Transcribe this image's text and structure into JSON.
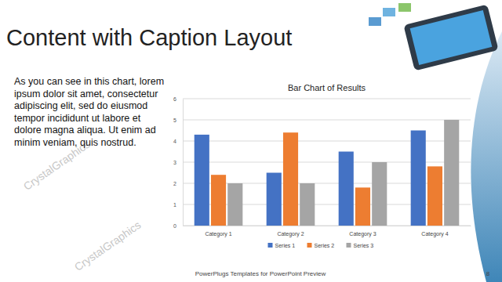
{
  "slide": {
    "title": "Content with Caption Layout",
    "caption": [
      "As you can see in this chart, lorem",
      "ipsum dolor sit amet, consectetur",
      "adipiscing elit, sed do eiusmod",
      "tempor incididunt ut labore et",
      "dolore magna aliqua. Ut enim ad",
      "minim veniam, quis nostrud."
    ],
    "watermark": "CrystalGraphics",
    "footer": "PowerPlugs Templates for PowerPoint Preview",
    "page_number": "8"
  },
  "chart_data": {
    "type": "bar",
    "title": "Bar Chart of Results",
    "categories": [
      "Category 1",
      "Category 2",
      "Category 3",
      "Category 4"
    ],
    "series": [
      {
        "name": "Series 1",
        "color": "#4472c4",
        "values": [
          4.3,
          2.5,
          3.5,
          4.5
        ]
      },
      {
        "name": "Series 2",
        "color": "#ed7d31",
        "values": [
          2.4,
          4.4,
          1.8,
          2.8
        ]
      },
      {
        "name": "Series 3",
        "color": "#a5a5a5",
        "values": [
          2,
          2,
          3,
          5
        ]
      }
    ],
    "ylim": [
      0,
      6
    ],
    "yticks": [
      0,
      1,
      2,
      3,
      4,
      5,
      6
    ],
    "grid": true,
    "legend": "bottom"
  }
}
